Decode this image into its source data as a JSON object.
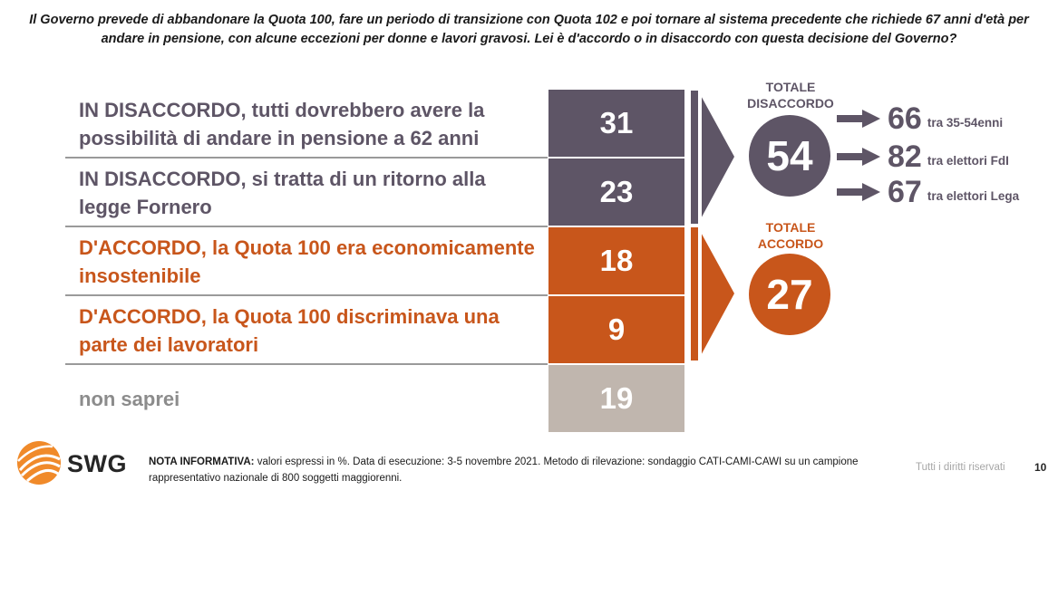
{
  "question": "Il Governo prevede di abbandonare la Quota 100, fare un periodo di transizione con Quota 102 e poi tornare al sistema precedente che richiede 67 anni d'età per andare in pensione, con alcune eccezioni per donne e lavori gravosi. Lei è d'accordo o in disaccordo con questa decisione del Governo?",
  "chart_data": {
    "type": "bar",
    "categories": [
      "IN DISACCORDO, tutti dovrebbero avere la possibilità di andare in pensione a 62 anni",
      "IN DISACCORDO, si tratta di un ritorno alla legge Fornero",
      "D'ACCORDO, la Quota 100 era economicamente insostenibile",
      "D'ACCORDO, la Quota 100 discriminava una parte dei lavoratori",
      "non saprei"
    ],
    "values": [
      31,
      23,
      18,
      9,
      19
    ],
    "value_labels": [
      "31",
      "23",
      "18",
      "9",
      "19"
    ],
    "colors": [
      "#5e5566",
      "#5e5566",
      "#c8561b",
      "#c8561b",
      "#c0b6ae"
    ],
    "label_colors": [
      "#5e5566",
      "#5e5566",
      "#c8561b",
      "#c8561b",
      "#8c8c8c"
    ],
    "unit": "%"
  },
  "totals": {
    "disaccordo": {
      "label": "TOTALE DISACCORDO",
      "value": "54",
      "color": "#5e5566"
    },
    "accordo": {
      "label": "TOTALE ACCORDO",
      "value": "27",
      "color": "#c8561b"
    }
  },
  "breakdown": [
    {
      "value": "66",
      "label": "tra 35-54enni"
    },
    {
      "value": "82",
      "label": "tra elettori FdI"
    },
    {
      "value": "67",
      "label": "tra elettori Lega"
    }
  ],
  "footer": {
    "logo_text": "SWG",
    "note_title": "NOTA INFORMATIVA:",
    "note_text": "valori espressi in %. Data di esecuzione: 3-5 novembre 2021. Metodo di rilevazione: sondaggio CATI-CAMI-CAWI su un campione rappresentativo nazionale di 800 soggetti maggiorenni.",
    "rights": "Tutti i diritti riservati",
    "page_number": "10"
  }
}
